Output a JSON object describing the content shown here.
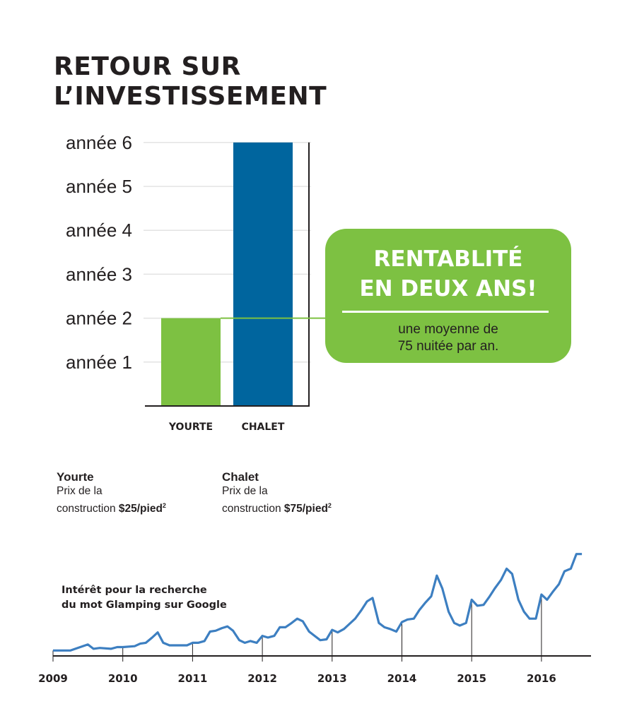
{
  "title": {
    "line1": "RETOUR SUR",
    "line2": "L’INVESTISSEMENT"
  },
  "chart_data": [
    {
      "type": "bar",
      "categories": [
        "YOURTE",
        "CHALET"
      ],
      "values": [
        2,
        6
      ],
      "colors": [
        "#7dc142",
        "#00659e"
      ],
      "y_tick_labels": [
        "année 1",
        "année 2",
        "année 3",
        "année 4",
        "année 5",
        "année 6"
      ],
      "ylim": [
        0,
        6
      ],
      "grid": true
    },
    {
      "type": "line",
      "title_lines": [
        "Intérêt pour la recherche",
        "du mot Glamping sur Google"
      ],
      "x_tick_labels": [
        "2009",
        "2010",
        "2011",
        "2012",
        "2013",
        "2014",
        "2015",
        "2016"
      ],
      "series": [
        {
          "color": "#3d7fc1",
          "x": [
            2009.0,
            2009.25,
            2009.5,
            2009.58,
            2009.67,
            2009.83,
            2009.92,
            2010.0,
            2010.17,
            2010.25,
            2010.33,
            2010.42,
            2010.5,
            2010.58,
            2010.67,
            2010.75,
            2010.92,
            2011.0,
            2011.08,
            2011.17,
            2011.25,
            2011.33,
            2011.42,
            2011.5,
            2011.58,
            2011.67,
            2011.75,
            2011.83,
            2011.92,
            2012.0,
            2012.08,
            2012.17,
            2012.25,
            2012.33,
            2012.42,
            2012.5,
            2012.58,
            2012.67,
            2012.75,
            2012.83,
            2012.92,
            2013.0,
            2013.08,
            2013.17,
            2013.25,
            2013.33,
            2013.42,
            2013.5,
            2013.58,
            2013.67,
            2013.75,
            2013.83,
            2013.92,
            2014.0,
            2014.08,
            2014.17,
            2014.25,
            2014.33,
            2014.42,
            2014.5,
            2014.58,
            2014.67,
            2014.75,
            2014.83,
            2014.92,
            2015.0,
            2015.08,
            2015.17,
            2015.25,
            2015.33,
            2015.42,
            2015.5,
            2015.58,
            2015.67,
            2015.75,
            2015.83,
            2015.92,
            2016.0,
            2016.08,
            2016.17,
            2016.25,
            2016.33,
            2016.42,
            2016.5,
            2016.58
          ],
          "y": [
            3,
            3,
            10,
            5,
            6,
            5,
            7,
            7,
            8,
            11,
            12,
            18,
            24,
            12,
            9,
            9,
            9,
            12,
            12,
            14,
            25,
            26,
            29,
            31,
            26,
            15,
            12,
            14,
            12,
            20,
            18,
            20,
            30,
            30,
            35,
            40,
            37,
            25,
            20,
            15,
            16,
            27,
            24,
            28,
            34,
            40,
            50,
            60,
            64,
            35,
            30,
            28,
            25,
            36,
            39,
            40,
            50,
            58,
            66,
            90,
            75,
            48,
            35,
            32,
            35,
            62,
            55,
            56,
            65,
            75,
            85,
            98,
            92,
            62,
            48,
            40,
            40,
            68,
            62,
            72,
            80,
            95,
            98,
            115,
            115
          ]
        }
      ]
    }
  ],
  "callout": {
    "headline_line1": "RENTABLITÉ",
    "headline_line2": "EN DEUX ANS!",
    "sub_line1": "une moyenne de",
    "sub_line2": "75 nuitée par an."
  },
  "costs": [
    {
      "name": "Yourte",
      "line1": "Prix de la",
      "line2_prefix": "construction ",
      "price": "$25/pied",
      "sup": "2"
    },
    {
      "name": "Chalet",
      "line1": "Prix de la",
      "line2_prefix": "construction ",
      "price": "$75/pied",
      "sup": "2"
    }
  ]
}
